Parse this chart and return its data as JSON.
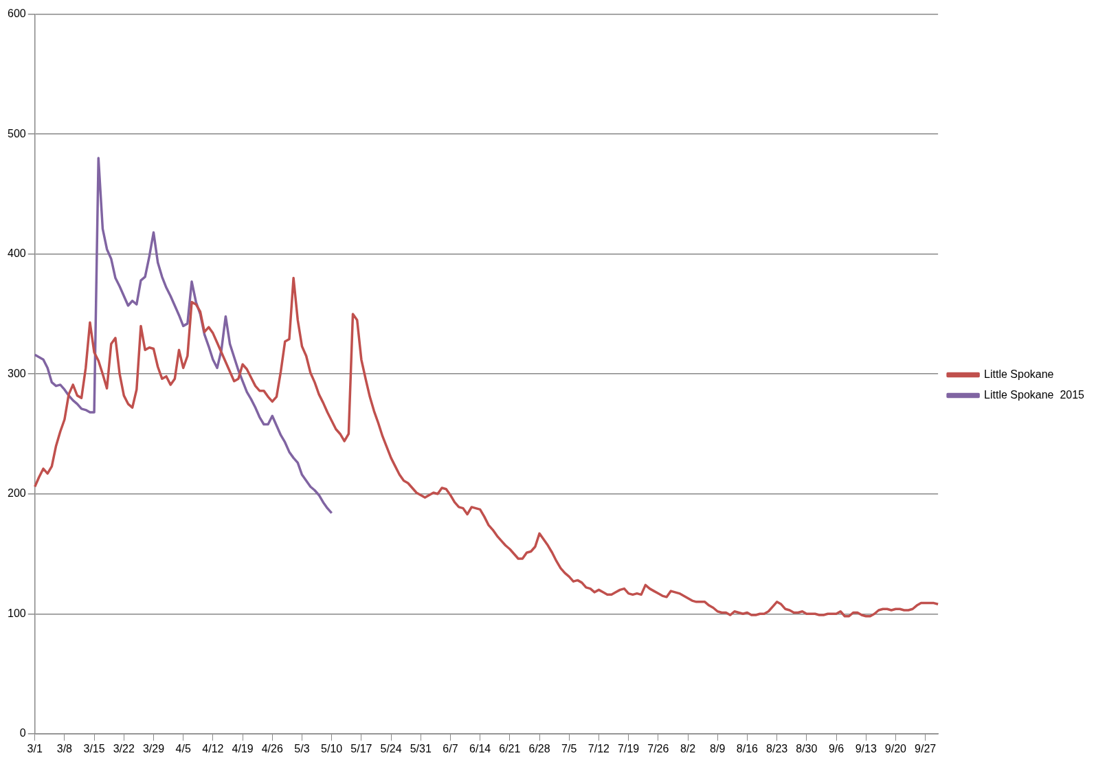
{
  "chart_data": {
    "type": "line",
    "categories": [
      "3/1",
      null,
      null,
      null,
      null,
      null,
      null,
      "3/8",
      null,
      null,
      null,
      null,
      null,
      null,
      "3/15",
      null,
      null,
      null,
      null,
      null,
      null,
      "3/22",
      null,
      null,
      null,
      null,
      null,
      null,
      "3/29",
      null,
      null,
      null,
      null,
      null,
      null,
      "4/5",
      null,
      null,
      null,
      null,
      null,
      null,
      "4/12",
      null,
      null,
      null,
      null,
      null,
      null,
      "4/19",
      null,
      null,
      null,
      null,
      null,
      null,
      "4/26",
      null,
      null,
      null,
      null,
      null,
      null,
      "5/3",
      null,
      null,
      null,
      null,
      null,
      null,
      "5/10",
      null,
      null,
      null,
      null,
      null,
      null,
      "5/17",
      null,
      null,
      null,
      null,
      null,
      null,
      "5/24",
      null,
      null,
      null,
      null,
      null,
      null,
      "5/31",
      null,
      null,
      null,
      null,
      null,
      null,
      "6/7",
      null,
      null,
      null,
      null,
      null,
      null,
      "6/14",
      null,
      null,
      null,
      null,
      null,
      null,
      "6/21",
      null,
      null,
      null,
      null,
      null,
      null,
      "6/28",
      null,
      null,
      null,
      null,
      null,
      null,
      "7/5",
      null,
      null,
      null,
      null,
      null,
      null,
      "7/12",
      null,
      null,
      null,
      null,
      null,
      null,
      "7/19",
      null,
      null,
      null,
      null,
      null,
      null,
      "7/26",
      null,
      null,
      null,
      null,
      null,
      null,
      "8/2",
      null,
      null,
      null,
      null,
      null,
      null,
      "8/9",
      null,
      null,
      null,
      null,
      null,
      null,
      "8/16",
      null,
      null,
      null,
      null,
      null,
      null,
      "8/23",
      null,
      null,
      null,
      null,
      null,
      null,
      "8/30",
      null,
      null,
      null,
      null,
      null,
      null,
      "9/6",
      null,
      null,
      null,
      null,
      null,
      null,
      "9/13",
      null,
      null,
      null,
      null,
      null,
      null,
      "9/20",
      null,
      null,
      null,
      null,
      null,
      null,
      "9/27",
      null,
      null,
      null
    ],
    "series": [
      {
        "name": "Little Spokane",
        "color": "#c0504d",
        "values": [
          206,
          214,
          221,
          217,
          223,
          240,
          252,
          262,
          283,
          291,
          282,
          280,
          305,
          343,
          318,
          311,
          300,
          288,
          325,
          330,
          300,
          282,
          275,
          272,
          287,
          340,
          320,
          322,
          321,
          306,
          296,
          298,
          291,
          296,
          320,
          305,
          315,
          360,
          358,
          352,
          335,
          339,
          334,
          326,
          318,
          310,
          302,
          294,
          296,
          308,
          304,
          297,
          290,
          286,
          286,
          281,
          277,
          281,
          302,
          327,
          329,
          380,
          345,
          323,
          315,
          301,
          293,
          283,
          276,
          268,
          261,
          254,
          250,
          244,
          250,
          350,
          345,
          312,
          296,
          281,
          269,
          259,
          248,
          239,
          230,
          223,
          216,
          211,
          209,
          205,
          201,
          199,
          197,
          199,
          201,
          200,
          205,
          204,
          199,
          193,
          189,
          188,
          183,
          189,
          188,
          187,
          181,
          174,
          170,
          165,
          161,
          157,
          154,
          150,
          146,
          146,
          151,
          152,
          156,
          167,
          162,
          157,
          151,
          144,
          138,
          134,
          131,
          127,
          128,
          126,
          122,
          121,
          118,
          120,
          118,
          116,
          116,
          118,
          120,
          121,
          117,
          116,
          117,
          116,
          124,
          121,
          119,
          117,
          115,
          114,
          119,
          118,
          117,
          115,
          113,
          111,
          110,
          110,
          110,
          107,
          105,
          102,
          101,
          101,
          99,
          102,
          101,
          100,
          101,
          99,
          99,
          100,
          100,
          102,
          106,
          110,
          108,
          104,
          103,
          101,
          101,
          102,
          100,
          100,
          100,
          99,
          99,
          100,
          100,
          100,
          102,
          98,
          98,
          101,
          101,
          99,
          98,
          98,
          100,
          103,
          104,
          104,
          103,
          104,
          104,
          103,
          103,
          104,
          107,
          109,
          109,
          109,
          109,
          108
        ]
      },
      {
        "name": "Little Spokane  2015",
        "color": "#8064a2",
        "values": [
          316,
          314,
          312,
          305,
          293,
          290,
          291,
          287,
          282,
          278,
          275,
          271,
          270,
          268,
          268,
          480,
          421,
          404,
          396,
          380,
          373,
          365,
          357,
          361,
          358,
          378,
          381,
          398,
          418,
          393,
          381,
          372,
          365,
          357,
          349,
          340,
          342,
          377,
          360,
          350,
          333,
          323,
          312,
          305,
          320,
          348,
          325,
          314,
          303,
          294,
          285,
          279,
          272,
          264,
          258,
          258,
          265,
          257,
          249,
          243,
          235,
          230,
          226,
          216,
          211,
          206,
          203,
          199,
          193,
          188,
          184,
          null,
          null,
          null,
          null,
          null,
          null,
          null,
          null,
          null,
          null,
          null,
          null,
          null,
          null,
          null,
          null,
          null,
          null,
          null,
          null,
          null,
          null,
          null,
          null,
          null,
          null,
          null,
          null,
          null,
          null,
          null,
          null,
          null,
          null,
          null,
          null,
          null,
          null,
          null,
          null,
          null,
          null,
          null,
          null,
          null,
          null,
          null,
          null,
          null,
          null,
          null,
          null,
          null,
          null,
          null,
          null,
          null,
          null,
          null,
          null,
          null,
          null,
          null,
          null,
          null,
          null,
          null,
          null,
          null,
          null,
          null,
          null,
          null,
          null,
          null,
          null,
          null,
          null,
          null,
          null,
          null,
          null,
          null,
          null,
          null,
          null,
          null,
          null,
          null,
          null,
          null,
          null,
          null,
          null,
          null,
          null,
          null,
          null,
          null,
          null,
          null,
          null,
          null,
          null,
          null,
          null,
          null,
          null,
          null,
          null,
          null,
          null,
          null,
          null,
          null,
          null,
          null,
          null,
          null,
          null,
          null,
          null,
          null,
          null,
          null,
          null,
          null,
          null,
          null,
          null,
          null,
          null,
          null,
          null,
          null,
          null,
          null,
          null,
          null,
          null,
          null,
          null,
          null
        ]
      }
    ],
    "ylim": [
      0,
      600
    ],
    "yticks": [
      0,
      100,
      200,
      300,
      400,
      500,
      600
    ],
    "grid": "y",
    "legend": "right",
    "marker": "none",
    "line_style": "solid"
  }
}
